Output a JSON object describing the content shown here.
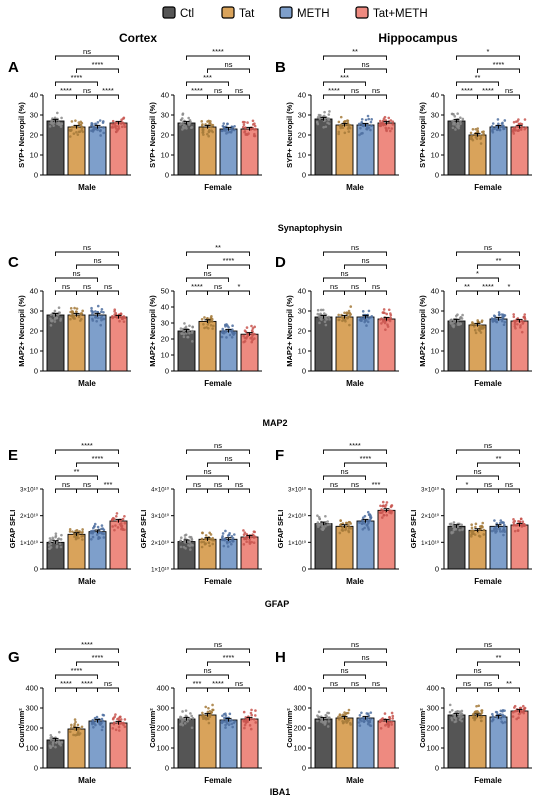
{
  "legend": {
    "items": [
      {
        "label": "Ctl",
        "color": "#555555"
      },
      {
        "label": "Tat",
        "color": "#d9a35b"
      },
      {
        "label": "METH",
        "color": "#7e9fcb"
      },
      {
        "label": "Tat+METH",
        "color": "#ee8a80"
      }
    ]
  },
  "titles": {
    "cortex": "Cortex",
    "hippocampus": "Hippocampus"
  },
  "sections": [
    "Synaptophysin",
    "MAP2",
    "GFAP",
    "IBA1"
  ],
  "panel_letters": [
    "A",
    "B",
    "C",
    "D",
    "E",
    "F",
    "G",
    "H"
  ],
  "colors": {
    "ctl": "#555555",
    "tat": "#d9a35b",
    "meth": "#7e9fcb",
    "tatmeth": "#ee8a80"
  },
  "chart_data": [
    {
      "type": "bar",
      "panel": "A",
      "region": "Cortex",
      "xlabel": "Male",
      "ylabel": "SYP+ Neuropil (%)",
      "categories": [
        "Ctl",
        "Tat",
        "METH",
        "Tat+METH"
      ],
      "values": [
        27,
        24,
        24,
        26
      ],
      "yticks": [
        "0",
        "10",
        "20",
        "30",
        "40"
      ],
      "ylim": [
        0,
        40
      ],
      "comparisons": [
        {
          "from": 0,
          "to": 1,
          "label": "****"
        },
        {
          "from": 1,
          "to": 2,
          "label": "ns"
        },
        {
          "from": 2,
          "to": 3,
          "label": "****"
        },
        {
          "from": 0,
          "to": 2,
          "label": "****"
        },
        {
          "from": 1,
          "to": 3,
          "label": "****"
        },
        {
          "from": 0,
          "to": 3,
          "label": "ns"
        }
      ]
    },
    {
      "type": "bar",
      "panel": "A",
      "region": "Cortex",
      "xlabel": "Female",
      "ylabel": "SYP+ Neuropil (%)",
      "categories": [
        "Ctl",
        "Tat",
        "METH",
        "Tat+METH"
      ],
      "values": [
        26,
        24,
        23,
        23
      ],
      "yticks": [
        "0",
        "10",
        "20",
        "30",
        "40"
      ],
      "ylim": [
        0,
        40
      ],
      "comparisons": [
        {
          "from": 0,
          "to": 1,
          "label": "****"
        },
        {
          "from": 1,
          "to": 2,
          "label": "ns"
        },
        {
          "from": 2,
          "to": 3,
          "label": "ns"
        },
        {
          "from": 0,
          "to": 2,
          "label": "***"
        },
        {
          "from": 1,
          "to": 3,
          "label": "ns"
        },
        {
          "from": 0,
          "to": 3,
          "label": "****"
        }
      ]
    },
    {
      "type": "bar",
      "panel": "B",
      "region": "Hippocampus",
      "xlabel": "Male",
      "ylabel": "SYP+ Neuropil (%)",
      "categories": [
        "Ctl",
        "Tat",
        "METH",
        "Tat+METH"
      ],
      "values": [
        28,
        25,
        25,
        26
      ],
      "yticks": [
        "0",
        "10",
        "20",
        "30",
        "40"
      ],
      "ylim": [
        0,
        40
      ],
      "comparisons": [
        {
          "from": 0,
          "to": 1,
          "label": "****"
        },
        {
          "from": 1,
          "to": 2,
          "label": "ns"
        },
        {
          "from": 2,
          "to": 3,
          "label": "ns"
        },
        {
          "from": 0,
          "to": 2,
          "label": "***"
        },
        {
          "from": 1,
          "to": 3,
          "label": "ns"
        },
        {
          "from": 0,
          "to": 3,
          "label": "**"
        }
      ]
    },
    {
      "type": "bar",
      "panel": "B",
      "region": "Hippocampus",
      "xlabel": "Female",
      "ylabel": "SYP+ Neuropil (%)",
      "categories": [
        "Ctl",
        "Tat",
        "METH",
        "Tat+METH"
      ],
      "values": [
        27,
        20,
        24,
        24
      ],
      "yticks": [
        "0",
        "10",
        "20",
        "30",
        "40"
      ],
      "ylim": [
        0,
        40
      ],
      "comparisons": [
        {
          "from": 0,
          "to": 1,
          "label": "****"
        },
        {
          "from": 1,
          "to": 2,
          "label": "****"
        },
        {
          "from": 2,
          "to": 3,
          "label": "ns"
        },
        {
          "from": 0,
          "to": 2,
          "label": "**"
        },
        {
          "from": 1,
          "to": 3,
          "label": "****"
        },
        {
          "from": 0,
          "to": 3,
          "label": "*"
        }
      ]
    },
    {
      "type": "bar",
      "panel": "C",
      "region": "Cortex",
      "xlabel": "Male",
      "ylabel": "MAP2+ Neuropil (%)",
      "categories": [
        "Ctl",
        "Tat",
        "METH",
        "Tat+METH"
      ],
      "values": [
        28,
        28,
        28,
        27
      ],
      "yticks": [
        "0",
        "10",
        "20",
        "30",
        "40"
      ],
      "ylim": [
        0,
        40
      ],
      "comparisons": [
        {
          "from": 0,
          "to": 1,
          "label": "ns"
        },
        {
          "from": 1,
          "to": 2,
          "label": "ns"
        },
        {
          "from": 2,
          "to": 3,
          "label": "ns"
        },
        {
          "from": 0,
          "to": 2,
          "label": "ns"
        },
        {
          "from": 1,
          "to": 3,
          "label": "ns"
        },
        {
          "from": 0,
          "to": 3,
          "label": "ns"
        }
      ]
    },
    {
      "type": "bar",
      "panel": "C",
      "region": "Cortex",
      "xlabel": "Female",
      "ylabel": "MAP2+ Neuropil (%)",
      "categories": [
        "Ctl",
        "Tat",
        "METH",
        "Tat+METH"
      ],
      "values": [
        25,
        31,
        25,
        23
      ],
      "yticks": [
        "0",
        "10",
        "20",
        "30",
        "40",
        "50"
      ],
      "ylim": [
        0,
        50
      ],
      "comparisons": [
        {
          "from": 0,
          "to": 1,
          "label": "****"
        },
        {
          "from": 1,
          "to": 2,
          "label": "ns"
        },
        {
          "from": 2,
          "to": 3,
          "label": "*"
        },
        {
          "from": 0,
          "to": 2,
          "label": "ns"
        },
        {
          "from": 1,
          "to": 3,
          "label": "****"
        },
        {
          "from": 0,
          "to": 3,
          "label": "**"
        }
      ]
    },
    {
      "type": "bar",
      "panel": "D",
      "region": "Hippocampus",
      "xlabel": "Male",
      "ylabel": "MAP2+ Neuropil (%)",
      "categories": [
        "Ctl",
        "Tat",
        "METH",
        "Tat+METH"
      ],
      "values": [
        27,
        27,
        27,
        26
      ],
      "yticks": [
        "0",
        "10",
        "20",
        "30",
        "40"
      ],
      "ylim": [
        0,
        40
      ],
      "comparisons": [
        {
          "from": 0,
          "to": 1,
          "label": "ns"
        },
        {
          "from": 1,
          "to": 2,
          "label": "ns"
        },
        {
          "from": 2,
          "to": 3,
          "label": "ns"
        },
        {
          "from": 0,
          "to": 2,
          "label": "ns"
        },
        {
          "from": 1,
          "to": 3,
          "label": "ns"
        },
        {
          "from": 0,
          "to": 3,
          "label": "ns"
        }
      ]
    },
    {
      "type": "bar",
      "panel": "D",
      "region": "Hippocampus",
      "xlabel": "Female",
      "ylabel": "MAP2+ Neuropil (%)",
      "categories": [
        "Ctl",
        "Tat",
        "METH",
        "Tat+METH"
      ],
      "values": [
        25,
        23,
        26,
        25
      ],
      "yticks": [
        "0",
        "10",
        "20",
        "30",
        "40"
      ],
      "ylim": [
        0,
        40
      ],
      "comparisons": [
        {
          "from": 0,
          "to": 1,
          "label": "**"
        },
        {
          "from": 1,
          "to": 2,
          "label": "****"
        },
        {
          "from": 2,
          "to": 3,
          "label": "*"
        },
        {
          "from": 0,
          "to": 2,
          "label": "*"
        },
        {
          "from": 1,
          "to": 3,
          "label": "**"
        },
        {
          "from": 0,
          "to": 3,
          "label": "ns"
        }
      ]
    },
    {
      "type": "bar",
      "panel": "E",
      "region": "Cortex",
      "xlabel": "Male",
      "ylabel": "GFAP SFLI",
      "categories": [
        "Ctl",
        "Tat",
        "METH",
        "Tat+METH"
      ],
      "values": [
        10000000000.0,
        13000000000.0,
        14000000000.0,
        18000000000.0
      ],
      "yticks": [
        "0",
        "1×10¹⁰",
        "2×10¹⁰",
        "3×10¹⁰"
      ],
      "ylim": [
        0,
        30000000000.0
      ],
      "comparisons": [
        {
          "from": 0,
          "to": 1,
          "label": "ns"
        },
        {
          "from": 1,
          "to": 2,
          "label": "ns"
        },
        {
          "from": 2,
          "to": 3,
          "label": "***"
        },
        {
          "from": 0,
          "to": 2,
          "label": "**"
        },
        {
          "from": 1,
          "to": 3,
          "label": "****"
        },
        {
          "from": 0,
          "to": 3,
          "label": "****"
        }
      ]
    },
    {
      "type": "bar",
      "panel": "E",
      "region": "Cortex",
      "xlabel": "Female",
      "ylabel": "GFAP SFLI",
      "categories": [
        "Ctl",
        "Tat",
        "METH",
        "Tat+METH"
      ],
      "values": [
        17000000000.0,
        18000000000.0,
        18000000000.0,
        19000000000.0
      ],
      "yticks": [
        "1×10¹⁰",
        "2×10¹⁰",
        "3×10¹⁰",
        "4×10¹⁰"
      ],
      "ylim": [
        5000000000.0,
        40000000000.0
      ],
      "comparisons": [
        {
          "from": 0,
          "to": 1,
          "label": "ns"
        },
        {
          "from": 1,
          "to": 2,
          "label": "ns"
        },
        {
          "from": 2,
          "to": 3,
          "label": "ns"
        },
        {
          "from": 0,
          "to": 2,
          "label": "ns"
        },
        {
          "from": 1,
          "to": 3,
          "label": "ns"
        },
        {
          "from": 0,
          "to": 3,
          "label": "ns"
        }
      ]
    },
    {
      "type": "bar",
      "panel": "F",
      "region": "Hippocampus",
      "xlabel": "Male",
      "ylabel": "GFAP SFLI",
      "categories": [
        "Ctl",
        "Tat",
        "METH",
        "Tat+METH"
      ],
      "values": [
        17000000000.0,
        16000000000.0,
        18000000000.0,
        22000000000.0
      ],
      "yticks": [
        "0",
        "1×10¹⁰",
        "2×10¹⁰",
        "3×10¹⁰"
      ],
      "ylim": [
        0,
        30000000000.0
      ],
      "comparisons": [
        {
          "from": 0,
          "to": 1,
          "label": "ns"
        },
        {
          "from": 1,
          "to": 2,
          "label": "ns"
        },
        {
          "from": 2,
          "to": 3,
          "label": "***"
        },
        {
          "from": 0,
          "to": 2,
          "label": "ns"
        },
        {
          "from": 1,
          "to": 3,
          "label": "****"
        },
        {
          "from": 0,
          "to": 3,
          "label": "****"
        }
      ]
    },
    {
      "type": "bar",
      "panel": "F",
      "region": "Hippocampus",
      "xlabel": "Female",
      "ylabel": "GFAP SFLI",
      "categories": [
        "Ctl",
        "Tat",
        "METH",
        "Tat+METH"
      ],
      "values": [
        16000000000.0,
        14500000000.0,
        16000000000.0,
        16500000000.0
      ],
      "yticks": [
        "0",
        "1×10¹⁰",
        "2×10¹⁰",
        "3×10¹⁰"
      ],
      "ylim": [
        0,
        30000000000.0
      ],
      "comparisons": [
        {
          "from": 0,
          "to": 1,
          "label": "*"
        },
        {
          "from": 1,
          "to": 2,
          "label": "ns"
        },
        {
          "from": 2,
          "to": 3,
          "label": "ns"
        },
        {
          "from": 0,
          "to": 2,
          "label": "ns"
        },
        {
          "from": 1,
          "to": 3,
          "label": "**"
        },
        {
          "from": 0,
          "to": 3,
          "label": "ns"
        }
      ]
    },
    {
      "type": "bar",
      "panel": "G",
      "region": "Cortex",
      "xlabel": "Male",
      "ylabel": "Count/mm²",
      "categories": [
        "Ctl",
        "Tat",
        "METH",
        "Tat+METH"
      ],
      "values": [
        140,
        195,
        235,
        225
      ],
      "yticks": [
        "0",
        "100",
        "200",
        "300",
        "400"
      ],
      "ylim": [
        0,
        400
      ],
      "comparisons": [
        {
          "from": 0,
          "to": 1,
          "label": "****"
        },
        {
          "from": 1,
          "to": 2,
          "label": "****"
        },
        {
          "from": 2,
          "to": 3,
          "label": "ns"
        },
        {
          "from": 0,
          "to": 2,
          "label": "****"
        },
        {
          "from": 1,
          "to": 3,
          "label": "****"
        },
        {
          "from": 0,
          "to": 3,
          "label": "****"
        }
      ]
    },
    {
      "type": "bar",
      "panel": "G",
      "region": "Cortex",
      "xlabel": "Female",
      "ylabel": "Count/mm²",
      "categories": [
        "Ctl",
        "Tat",
        "METH",
        "Tat+METH"
      ],
      "values": [
        245,
        265,
        240,
        245
      ],
      "yticks": [
        "0",
        "100",
        "200",
        "300",
        "400"
      ],
      "ylim": [
        0,
        400
      ],
      "comparisons": [
        {
          "from": 0,
          "to": 1,
          "label": "***"
        },
        {
          "from": 1,
          "to": 2,
          "label": "****"
        },
        {
          "from": 2,
          "to": 3,
          "label": "ns"
        },
        {
          "from": 0,
          "to": 2,
          "label": "ns"
        },
        {
          "from": 1,
          "to": 3,
          "label": "****"
        },
        {
          "from": 0,
          "to": 3,
          "label": "ns"
        }
      ]
    },
    {
      "type": "bar",
      "panel": "H",
      "region": "Hippocampus",
      "xlabel": "Male",
      "ylabel": "Count/mm²",
      "categories": [
        "Ctl",
        "Tat",
        "METH",
        "Tat+METH"
      ],
      "values": [
        245,
        250,
        250,
        235
      ],
      "yticks": [
        "0",
        "100",
        "200",
        "300",
        "400"
      ],
      "ylim": [
        0,
        400
      ],
      "comparisons": [
        {
          "from": 0,
          "to": 1,
          "label": "ns"
        },
        {
          "from": 1,
          "to": 2,
          "label": "ns"
        },
        {
          "from": 2,
          "to": 3,
          "label": "ns"
        },
        {
          "from": 0,
          "to": 2,
          "label": "ns"
        },
        {
          "from": 1,
          "to": 3,
          "label": "ns"
        },
        {
          "from": 0,
          "to": 3,
          "label": "ns"
        }
      ]
    },
    {
      "type": "bar",
      "panel": "H",
      "region": "Hippocampus",
      "xlabel": "Female",
      "ylabel": "Count/mm²",
      "categories": [
        "Ctl",
        "Tat",
        "METH",
        "Tat+METH"
      ],
      "values": [
        265,
        262,
        255,
        285
      ],
      "yticks": [
        "0",
        "100",
        "200",
        "300",
        "400"
      ],
      "ylim": [
        0,
        400
      ],
      "comparisons": [
        {
          "from": 0,
          "to": 1,
          "label": "ns"
        },
        {
          "from": 1,
          "to": 2,
          "label": "ns"
        },
        {
          "from": 2,
          "to": 3,
          "label": "**"
        },
        {
          "from": 0,
          "to": 2,
          "label": "ns"
        },
        {
          "from": 1,
          "to": 3,
          "label": "**"
        },
        {
          "from": 0,
          "to": 3,
          "label": "ns"
        }
      ]
    }
  ]
}
